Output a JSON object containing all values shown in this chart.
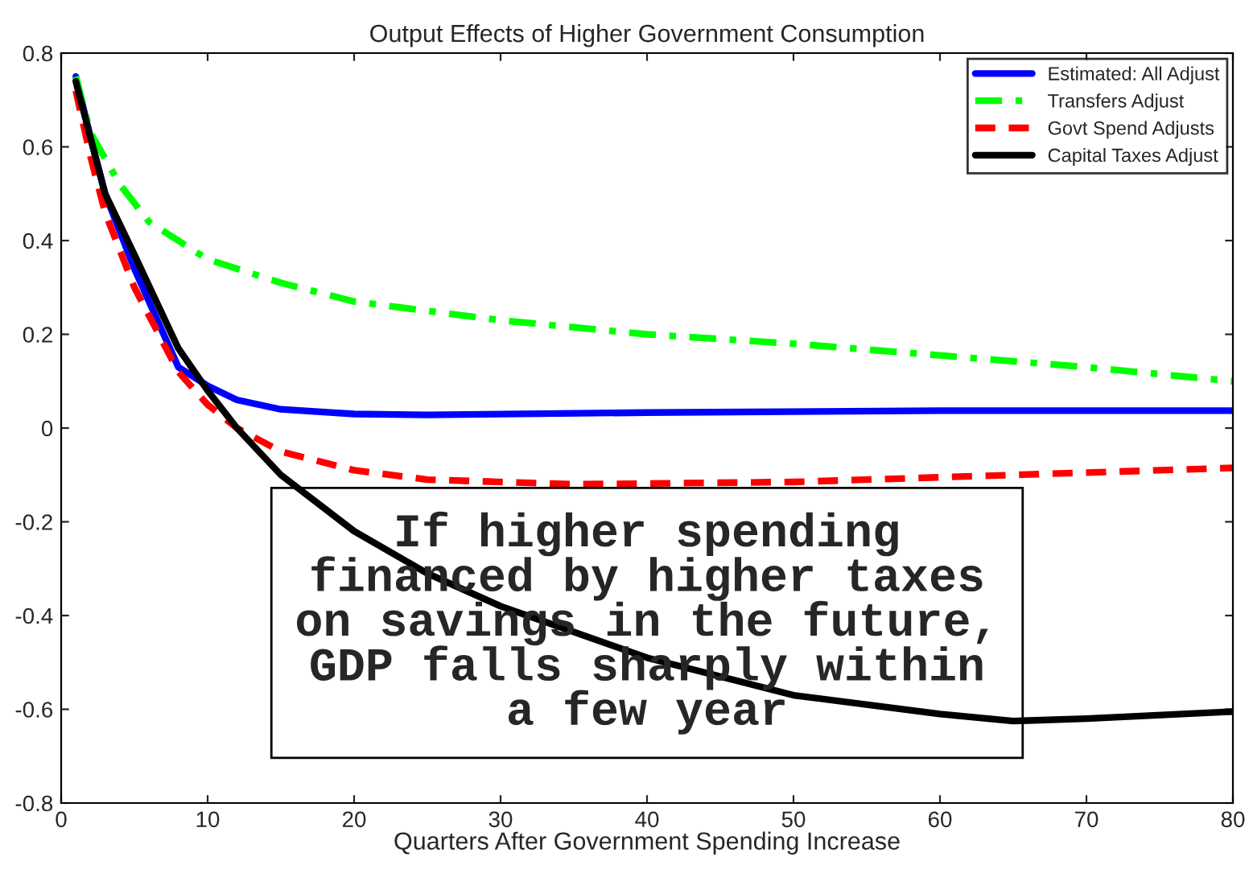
{
  "chart_data": {
    "type": "line",
    "title": "Output Effects of Higher Government Consumption",
    "xlabel": "Quarters After Government Spending Increase",
    "xlim": [
      0,
      80
    ],
    "xticks": [
      0,
      10,
      20,
      30,
      40,
      50,
      60,
      70,
      80
    ],
    "ylim": [
      -0.8,
      0.8
    ],
    "yticks": [
      -0.8,
      -0.6,
      -0.4,
      -0.2,
      0,
      0.2,
      0.4,
      0.6,
      0.8
    ],
    "grid": false,
    "legend": "top right",
    "annotations": [
      "If higher spending\nfinanced by higher taxes\non savings in the future,\nGDP falls sharply within\na few year"
    ],
    "series": [
      {
        "name": "Estimated: All Adjust",
        "color": "#0000ff",
        "line_style": "solid",
        "x": [
          1,
          2,
          3,
          5,
          8,
          10,
          12,
          15,
          20,
          25,
          40,
          60,
          80
        ],
        "values": [
          0.75,
          0.62,
          0.5,
          0.34,
          0.13,
          0.09,
          0.06,
          0.04,
          0.03,
          0.028,
          0.033,
          0.037,
          0.037
        ]
      },
      {
        "name": "Transfers Adjust",
        "color": "#00ff00",
        "line_style": "dashdot",
        "x": [
          1,
          2,
          4,
          6,
          10,
          15,
          20,
          30,
          40,
          50,
          60,
          70,
          80
        ],
        "values": [
          0.75,
          0.63,
          0.52,
          0.44,
          0.36,
          0.31,
          0.27,
          0.23,
          0.2,
          0.18,
          0.155,
          0.13,
          0.1
        ]
      },
      {
        "name": "Govt Spend Adjusts",
        "color": "#ff0000",
        "line_style": "dashed",
        "x": [
          1,
          2,
          3,
          5,
          8,
          10,
          12,
          15,
          20,
          25,
          35,
          50,
          60,
          70,
          80
        ],
        "values": [
          0.72,
          0.58,
          0.46,
          0.3,
          0.12,
          0.05,
          0.0,
          -0.05,
          -0.09,
          -0.11,
          -0.12,
          -0.115,
          -0.105,
          -0.095,
          -0.085
        ]
      },
      {
        "name": "Capital Taxes Adjust",
        "color": "#000000",
        "line_style": "solid",
        "x": [
          1,
          3,
          5,
          8,
          10,
          12,
          15,
          20,
          25,
          30,
          40,
          50,
          60,
          65,
          70,
          80
        ],
        "values": [
          0.74,
          0.5,
          0.37,
          0.17,
          0.08,
          0.0,
          -0.1,
          -0.22,
          -0.31,
          -0.38,
          -0.49,
          -0.57,
          -0.61,
          -0.625,
          -0.62,
          -0.605
        ]
      }
    ]
  }
}
